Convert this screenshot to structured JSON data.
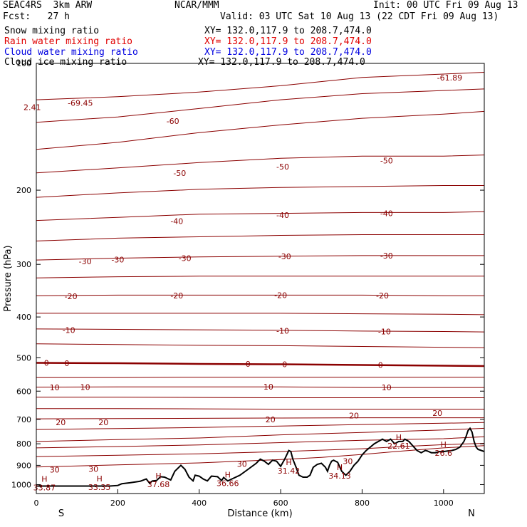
{
  "header": {
    "model": "SEAC4RS  3km ARW",
    "org": "NCAR/MMM",
    "init": "Init: 00 UTC Fri 09 Aug 13",
    "fcst": "Fcst:   27 h",
    "valid": "Valid: 03 UTC Sat 10 Aug 13 (22 CDT Fri 09 Aug 13)",
    "fields": [
      {
        "label": "Snow mixing ratio",
        "xy": "XY= 132.0,117.9 to 208.7,474.0",
        "color": "#000000"
      },
      {
        "label": "Rain water mixing ratio",
        "xy": "XY= 132.0,117.9 to 208.7,474.0",
        "color": "#e00000"
      },
      {
        "label": "Cloud water mixing ratio",
        "xy": "XY= 132.0,117.9 to 208.7,474.0",
        "color": "#0000e0"
      },
      {
        "label": "Cloud ice mixing ratio",
        "xy": "XY= 132.0,117.9 to 208.7,474.0",
        "color": "#000000"
      }
    ]
  },
  "chart_data": {
    "type": "line",
    "title": "",
    "xlabel": "Distance (km)",
    "ylabel": "Pressure (hPa)",
    "xlim": [
      0,
      1100
    ],
    "ylim": [
      1050,
      100
    ],
    "y_scale": "log",
    "xticks": [
      0,
      200,
      400,
      600,
      800,
      1000
    ],
    "yticks": [
      100,
      200,
      300,
      400,
      500,
      600,
      700,
      800,
      900,
      1000
    ],
    "x_end_labels": {
      "left": "S",
      "right": "N"
    },
    "colors": {
      "isotherm": "#8b0000",
      "terrain": "#000000"
    },
    "isotherms": [
      {
        "level": -69,
        "x": [
          0,
          200,
          400,
          600,
          800,
          1000,
          1100
        ],
        "p": [
          122,
          120,
          117,
          113,
          108,
          106,
          105
        ]
      },
      {
        "level": -60,
        "x": [
          0,
          200,
          400,
          600,
          800,
          1000,
          1100
        ],
        "p": [
          138,
          134,
          128,
          122,
          118,
          116,
          115
        ]
      },
      {
        "level": -55,
        "x": [
          0,
          200,
          400,
          600,
          800,
          1000,
          1100
        ],
        "p": [
          160,
          154,
          146,
          140,
          135,
          132,
          130
        ]
      },
      {
        "level": -50,
        "x": [
          0,
          200,
          400,
          600,
          800,
          1000,
          1100
        ],
        "p": [
          182,
          177,
          172,
          168,
          166,
          166,
          165
        ]
      },
      {
        "level": -45,
        "x": [
          0,
          200,
          400,
          600,
          800,
          1000,
          1100
        ],
        "p": [
          208,
          203,
          199,
          197,
          196,
          195,
          195
        ]
      },
      {
        "level": -40,
        "x": [
          0,
          200,
          400,
          600,
          800,
          1000,
          1100
        ],
        "p": [
          236,
          232,
          228,
          227,
          226,
          226,
          225
        ]
      },
      {
        "level": -35,
        "x": [
          0,
          200,
          400,
          600,
          800,
          1000,
          1100
        ],
        "p": [
          264,
          260,
          258,
          256,
          255,
          255,
          255
        ]
      },
      {
        "level": -30,
        "x": [
          0,
          200,
          400,
          600,
          800,
          1000,
          1100
        ],
        "p": [
          293,
          290,
          288,
          287,
          286,
          286,
          286
        ]
      },
      {
        "level": -25,
        "x": [
          0,
          200,
          400,
          600,
          800,
          1000,
          1100
        ],
        "p": [
          323,
          321,
          320,
          320,
          320,
          320,
          320
        ]
      },
      {
        "level": -20,
        "x": [
          0,
          200,
          400,
          600,
          800,
          1000,
          1100
        ],
        "p": [
          356,
          355,
          355,
          355,
          355,
          356,
          356
        ]
      },
      {
        "level": -15,
        "x": [
          0,
          200,
          400,
          600,
          800,
          1000,
          1100
        ],
        "p": [
          392,
          392,
          392,
          392,
          393,
          394,
          395
        ]
      },
      {
        "level": -10,
        "x": [
          0,
          200,
          400,
          600,
          800,
          1000,
          1100
        ],
        "p": [
          427,
          428,
          429,
          430,
          432,
          433,
          434
        ]
      },
      {
        "level": -5,
        "x": [
          0,
          200,
          400,
          600,
          800,
          1000,
          1100
        ],
        "p": [
          463,
          465,
          467,
          468,
          470,
          472,
          473
        ]
      },
      {
        "level": 0,
        "x": [
          0,
          200,
          400,
          600,
          800,
          1000,
          1100
        ],
        "p": [
          514,
          515,
          517,
          518,
          520,
          522,
          523
        ]
      },
      {
        "level": 5,
        "x": [
          0,
          200,
          400,
          600,
          800,
          1000,
          1100
        ],
        "p": [
          557,
          557,
          556,
          556,
          556,
          556,
          556
        ]
      },
      {
        "level": 10,
        "x": [
          0,
          200,
          400,
          600,
          800,
          1000,
          1100
        ],
        "p": [
          587,
          586,
          586,
          586,
          588,
          588,
          588
        ]
      },
      {
        "level": 15,
        "x": [
          0,
          200,
          400,
          600,
          800,
          1000,
          1100
        ],
        "p": [
          620,
          620,
          621,
          622,
          622,
          622,
          622
        ]
      },
      {
        "level": 20,
        "x": [
          0,
          200,
          400,
          600,
          800,
          1000,
          1100
        ],
        "p": [
          660,
          660,
          661,
          662,
          662,
          662,
          662
        ]
      },
      {
        "level": 25,
        "x": [
          0,
          200,
          400,
          600,
          800,
          1000,
          1100
        ],
        "p": [
          698,
          697,
          696,
          695,
          694,
          694,
          694
        ]
      },
      {
        "level": 30,
        "x": [
          0,
          200,
          400,
          600,
          800,
          1000,
          1100
        ],
        "p": [
          740,
          736,
          732,
          726,
          720,
          715,
          712
        ]
      },
      {
        "level": 35,
        "x": [
          0,
          200,
          400,
          600,
          800,
          1000,
          1100
        ],
        "p": [
          790,
          782,
          775,
          762,
          752,
          742,
          735
        ]
      },
      {
        "level": 40,
        "x": [
          0,
          200,
          400,
          600,
          800,
          1000,
          1100
        ],
        "p": [
          818,
          812,
          805,
          795,
          785,
          778,
          770
        ]
      },
      {
        "level": 45,
        "x": [
          0,
          200,
          400,
          600,
          800,
          900,
          1000,
          1100
        ],
        "p": [
          858,
          852,
          845,
          835,
          822,
          812,
          804,
          798
        ]
      },
      {
        "level": 50,
        "x": [
          0,
          200,
          400,
          600,
          700,
          800,
          900,
          1000,
          1100
        ],
        "p": [
          908,
          898,
          888,
          872,
          862,
          848,
          832,
          818,
          808
        ]
      }
    ],
    "bold_isotherm": 0,
    "labels": [
      {
        "text": "2.41",
        "x": -10,
        "p": 127
      },
      {
        "text": "-69.45",
        "x": 108,
        "p": 124
      },
      {
        "text": "-61.89",
        "x": 1015,
        "p": 108
      },
      {
        "text": "-60",
        "x": 335,
        "p": 137
      },
      {
        "text": "-50",
        "x": 352,
        "p": 182
      },
      {
        "text": "-50",
        "x": 605,
        "p": 176
      },
      {
        "text": "-50",
        "x": 860,
        "p": 170
      },
      {
        "text": "-40",
        "x": 345,
        "p": 237
      },
      {
        "text": "-40",
        "x": 605,
        "p": 229
      },
      {
        "text": "-40",
        "x": 860,
        "p": 227
      },
      {
        "text": "-30",
        "x": 120,
        "p": 295
      },
      {
        "text": "-30",
        "x": 200,
        "p": 292
      },
      {
        "text": "-30",
        "x": 365,
        "p": 290
      },
      {
        "text": "-30",
        "x": 610,
        "p": 287
      },
      {
        "text": "-30",
        "x": 860,
        "p": 286
      },
      {
        "text": "-20",
        "x": 85,
        "p": 357
      },
      {
        "text": "-20",
        "x": 345,
        "p": 356
      },
      {
        "text": "-20",
        "x": 600,
        "p": 355
      },
      {
        "text": "-20",
        "x": 850,
        "p": 356
      },
      {
        "text": "-10",
        "x": 80,
        "p": 430
      },
      {
        "text": "-10",
        "x": 605,
        "p": 431
      },
      {
        "text": "-10",
        "x": 855,
        "p": 433
      },
      {
        "text": "0",
        "x": 25,
        "p": 514
      },
      {
        "text": "0",
        "x": 75,
        "p": 515
      },
      {
        "text": "0",
        "x": 520,
        "p": 517
      },
      {
        "text": "0",
        "x": 610,
        "p": 518
      },
      {
        "text": "0",
        "x": 845,
        "p": 520
      },
      {
        "text": "10",
        "x": 45,
        "p": 588
      },
      {
        "text": "10",
        "x": 120,
        "p": 587
      },
      {
        "text": "10",
        "x": 570,
        "p": 586
      },
      {
        "text": "10",
        "x": 860,
        "p": 588
      },
      {
        "text": "20",
        "x": 60,
        "p": 712
      },
      {
        "text": "20",
        "x": 165,
        "p": 712
      },
      {
        "text": "20",
        "x": 575,
        "p": 700
      },
      {
        "text": "20",
        "x": 780,
        "p": 686
      },
      {
        "text": "20",
        "x": 985,
        "p": 676
      },
      {
        "text": "30",
        "x": 45,
        "p": 922
      },
      {
        "text": "30",
        "x": 140,
        "p": 918
      },
      {
        "text": "30",
        "x": 505,
        "p": 893
      },
      {
        "text": "30",
        "x": 765,
        "p": 880
      }
    ],
    "highs": [
      {
        "text": "H",
        "value": "33.87",
        "x": 20,
        "p": 992
      },
      {
        "text": "H",
        "value": "33.35",
        "x": 155,
        "p": 990
      },
      {
        "text": "H",
        "value": "37.68",
        "x": 300,
        "p": 975
      },
      {
        "text": "H",
        "value": "36.66",
        "x": 470,
        "p": 970
      },
      {
        "text": "H",
        "value": "31.42",
        "x": 620,
        "p": 906
      },
      {
        "text": "H",
        "value": "34.13",
        "x": 745,
        "p": 930
      },
      {
        "text": "H",
        "value": "22.61",
        "x": 890,
        "p": 790
      },
      {
        "text": "H",
        "value": "26.6",
        "x": 1000,
        "p": 822
      }
    ],
    "terrain": {
      "x": [
        0,
        10,
        100,
        180,
        200,
        210,
        230,
        255,
        270,
        278,
        285,
        295,
        305,
        315,
        330,
        340,
        355,
        365,
        375,
        385,
        390,
        400,
        410,
        420,
        430,
        445,
        455,
        460,
        470,
        480,
        500,
        520,
        540,
        550,
        560,
        570,
        580,
        590,
        600,
        610,
        620,
        625,
        630,
        638,
        645,
        655,
        665,
        672,
        680,
        690,
        700,
        710,
        715,
        720,
        725,
        730,
        740,
        750,
        760,
        770,
        780,
        790,
        800,
        810,
        820,
        830,
        840,
        850,
        860,
        870,
        880,
        890,
        900,
        905,
        915,
        925,
        935,
        945,
        955,
        960,
        970,
        980,
        990,
        1000,
        1010,
        1020,
        1030,
        1040,
        1050,
        1055,
        1060,
        1065,
        1070,
        1075,
        1080,
        1085,
        1090,
        1100
      ],
      "p": [
        1008,
        1008,
        1008,
        1008,
        1005,
        995,
        990,
        982,
        970,
        992,
        980,
        978,
        958,
        960,
        975,
        930,
        900,
        920,
        960,
        980,
        950,
        955,
        970,
        980,
        955,
        958,
        978,
        962,
        980,
        970,
        950,
        920,
        890,
        870,
        880,
        895,
        875,
        880,
        905,
        870,
        830,
        835,
        870,
        910,
        950,
        960,
        960,
        950,
        910,
        895,
        890,
        910,
        930,
        900,
        880,
        875,
        885,
        930,
        950,
        930,
        900,
        880,
        850,
        830,
        815,
        800,
        790,
        780,
        790,
        780,
        800,
        790,
        790,
        780,
        790,
        810,
        830,
        840,
        830,
        832,
        840,
        840,
        835,
        835,
        832,
        830,
        825,
        815,
        790,
        770,
        745,
        735,
        750,
        790,
        815,
        825,
        828,
        835
      ]
    }
  }
}
